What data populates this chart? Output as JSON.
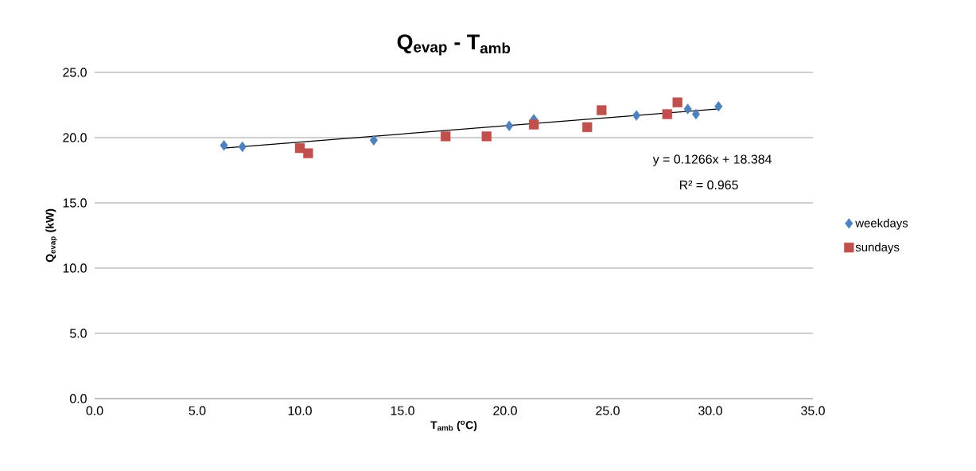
{
  "chart_data": {
    "type": "scatter",
    "title": "**Q$_{evap}$ - T$_{amb}$**",
    "xlabel": "**T$_{amb}$ ($^{o}$C)**",
    "ylabel": "**Q$_{evap}$ (kW)**",
    "annotations": [
      "y = 0.1266x + 18.384",
      "R² = 0.965"
    ],
    "xlim": [
      0,
      35
    ],
    "ylim": [
      0,
      25
    ],
    "xticks": [
      {
        "value": 0,
        "label": "0.0"
      },
      {
        "value": 5,
        "label": "5.0"
      },
      {
        "value": 10,
        "label": "10.0"
      },
      {
        "value": 15,
        "label": "15.0"
      },
      {
        "value": 20,
        "label": "20.0"
      },
      {
        "value": 25,
        "label": "25.0"
      },
      {
        "value": 30,
        "label": "30.0"
      },
      {
        "value": 35,
        "label": "35.0"
      }
    ],
    "yticks": [
      {
        "value": 0,
        "label": "0.0"
      },
      {
        "value": 5,
        "label": "5.0"
      },
      {
        "value": 10,
        "label": "10.0"
      },
      {
        "value": 15,
        "label": "15.0"
      },
      {
        "value": 20,
        "label": "20.0"
      },
      {
        "value": 25,
        "label": "25.0"
      }
    ],
    "grid": "y",
    "legend": "right",
    "series": [
      {
        "name": "weekdays",
        "color": "#4f81bd",
        "marker": "diamond",
        "x": [
          6.3,
          7.2,
          13.6,
          20.2,
          21.4,
          26.4,
          28.9,
          29.3,
          30.4
        ],
        "values": [
          19.4,
          19.3,
          19.8,
          20.9,
          21.4,
          21.7,
          22.2,
          21.8,
          22.4
        ]
      },
      {
        "name": "sundays",
        "color": "#c0504d",
        "marker": "square",
        "x": [
          10.0,
          10.4,
          17.1,
          19.1,
          21.4,
          24.0,
          24.7,
          27.9,
          28.4
        ],
        "values": [
          19.2,
          18.8,
          20.1,
          20.1,
          21.0,
          20.8,
          22.1,
          21.8,
          22.7
        ]
      },
      {
        "type": "line",
        "color": "#000000",
        "marker": "none",
        "x": [
          6.3,
          30.4
        ],
        "values": [
          19.2,
          22.2
        ]
      }
    ]
  }
}
